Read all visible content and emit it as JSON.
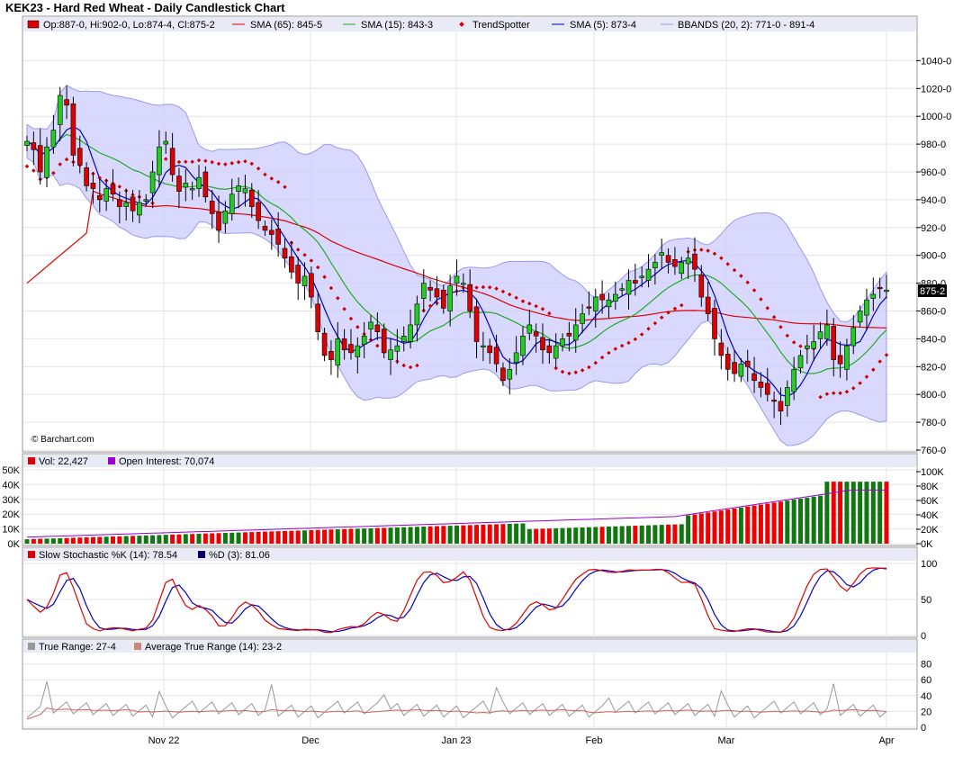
{
  "title": "KEK23 - Hard Red Wheat - Daily Candlestick Chart",
  "watermark": "© Barchart.com",
  "price_panel": {
    "legend": {
      "ohlc": "Op:887-0, Hi:902-0, Lo:874-4, Cl:875-2",
      "sma65": "SMA (65): 845-5",
      "sma15": "SMA (15): 843-3",
      "trendspotter": "TrendSpotter",
      "sma5": "SMA (5): 873-4",
      "bbands": "BBANDS (20, 2): 771-0 - 891-4"
    },
    "y_ticks": [
      "1040-0",
      "1020-0",
      "1000-0",
      "980-0",
      "960-0",
      "940-0",
      "920-0",
      "900-0",
      "880-0",
      "860-0",
      "840-0",
      "820-0",
      "800-0",
      "780-0",
      "760-0"
    ],
    "last_price_label": "875-2"
  },
  "volume_panel": {
    "legend": {
      "vol": "Vol: 22,427",
      "oi": "Open Interest: 70,074"
    },
    "y_ticks_left": [
      "50K",
      "40K",
      "30K",
      "20K",
      "10K",
      "0K"
    ],
    "y_ticks_right": [
      "100K",
      "80K",
      "60K",
      "40K",
      "20K",
      "0K"
    ]
  },
  "stoch_panel": {
    "legend": {
      "k": "Slow Stochastic %K (14): 78.54",
      "d": "%D (3): 81.06"
    },
    "y_ticks": [
      "100",
      "50",
      "0"
    ]
  },
  "tr_panel": {
    "legend": {
      "tr": "True Range: 27-4",
      "atr": "Average True Range (14): 23-2"
    },
    "y_ticks": [
      "80",
      "60",
      "40",
      "20",
      "0"
    ]
  },
  "x_labels": [
    "Nov 22",
    "Dec",
    "Jan 23",
    "Feb",
    "Mar",
    "Apr"
  ],
  "colors": {
    "up": "#22cc22",
    "down": "#dd0000",
    "sma65": "#dd0000",
    "sma15": "#22aa22",
    "sma5": "#0000cc",
    "band": "#ccccff",
    "oi": "#9900cc",
    "stochK": "#dd0000",
    "stochD": "#0000cc"
  },
  "chart_data": {
    "type": "candlestick",
    "x_labels": [
      "Nov 22",
      "Dec",
      "Jan 23",
      "Feb",
      "Mar",
      "Apr"
    ],
    "ylim": [
      760,
      1050
    ],
    "closes": [
      982,
      976,
      960,
      978,
      990,
      1015,
      1008,
      972,
      965,
      950,
      948,
      940,
      948,
      944,
      935,
      938,
      932,
      938,
      940,
      960,
      978,
      982,
      958,
      946,
      952,
      948,
      956,
      942,
      930,
      918,
      932,
      944,
      950,
      948,
      935,
      925,
      918,
      915,
      908,
      898,
      888,
      880,
      885,
      870,
      845,
      828,
      825,
      840,
      832,
      830,
      835,
      842,
      852,
      845,
      830,
      832,
      835,
      842,
      850,
      865,
      880,
      875,
      870,
      862,
      878,
      885,
      880,
      860,
      838,
      835,
      830,
      822,
      810,
      818,
      830,
      842,
      850,
      842,
      832,
      830,
      835,
      840,
      842,
      850,
      858,
      862,
      870,
      868,
      868,
      872,
      876,
      882,
      880,
      885,
      890,
      895,
      902,
      895,
      892,
      895,
      898,
      890,
      870,
      858,
      840,
      828,
      818,
      815,
      822,
      820,
      810,
      805,
      800,
      795,
      788,
      805,
      818,
      828,
      835,
      838,
      845,
      850,
      825,
      822,
      835,
      848,
      860,
      868,
      872,
      876,
      875
    ],
    "sma65_end": 845.5,
    "sma15_end": 843.3,
    "sma5_end": 873.4,
    "bbands": {
      "lower": 771.0,
      "upper": 891.4
    },
    "volume": {
      "last": 22427,
      "open_interest": 70074,
      "ylim": [
        0,
        50000
      ],
      "oi_ylim": [
        0,
        110000
      ]
    },
    "stochastic": {
      "k": 78.54,
      "d": 81.06,
      "ylim": [
        0,
        100
      ]
    },
    "true_range": {
      "tr": 27.4,
      "atr": 23.2,
      "ylim": [
        0,
        90
      ]
    }
  }
}
